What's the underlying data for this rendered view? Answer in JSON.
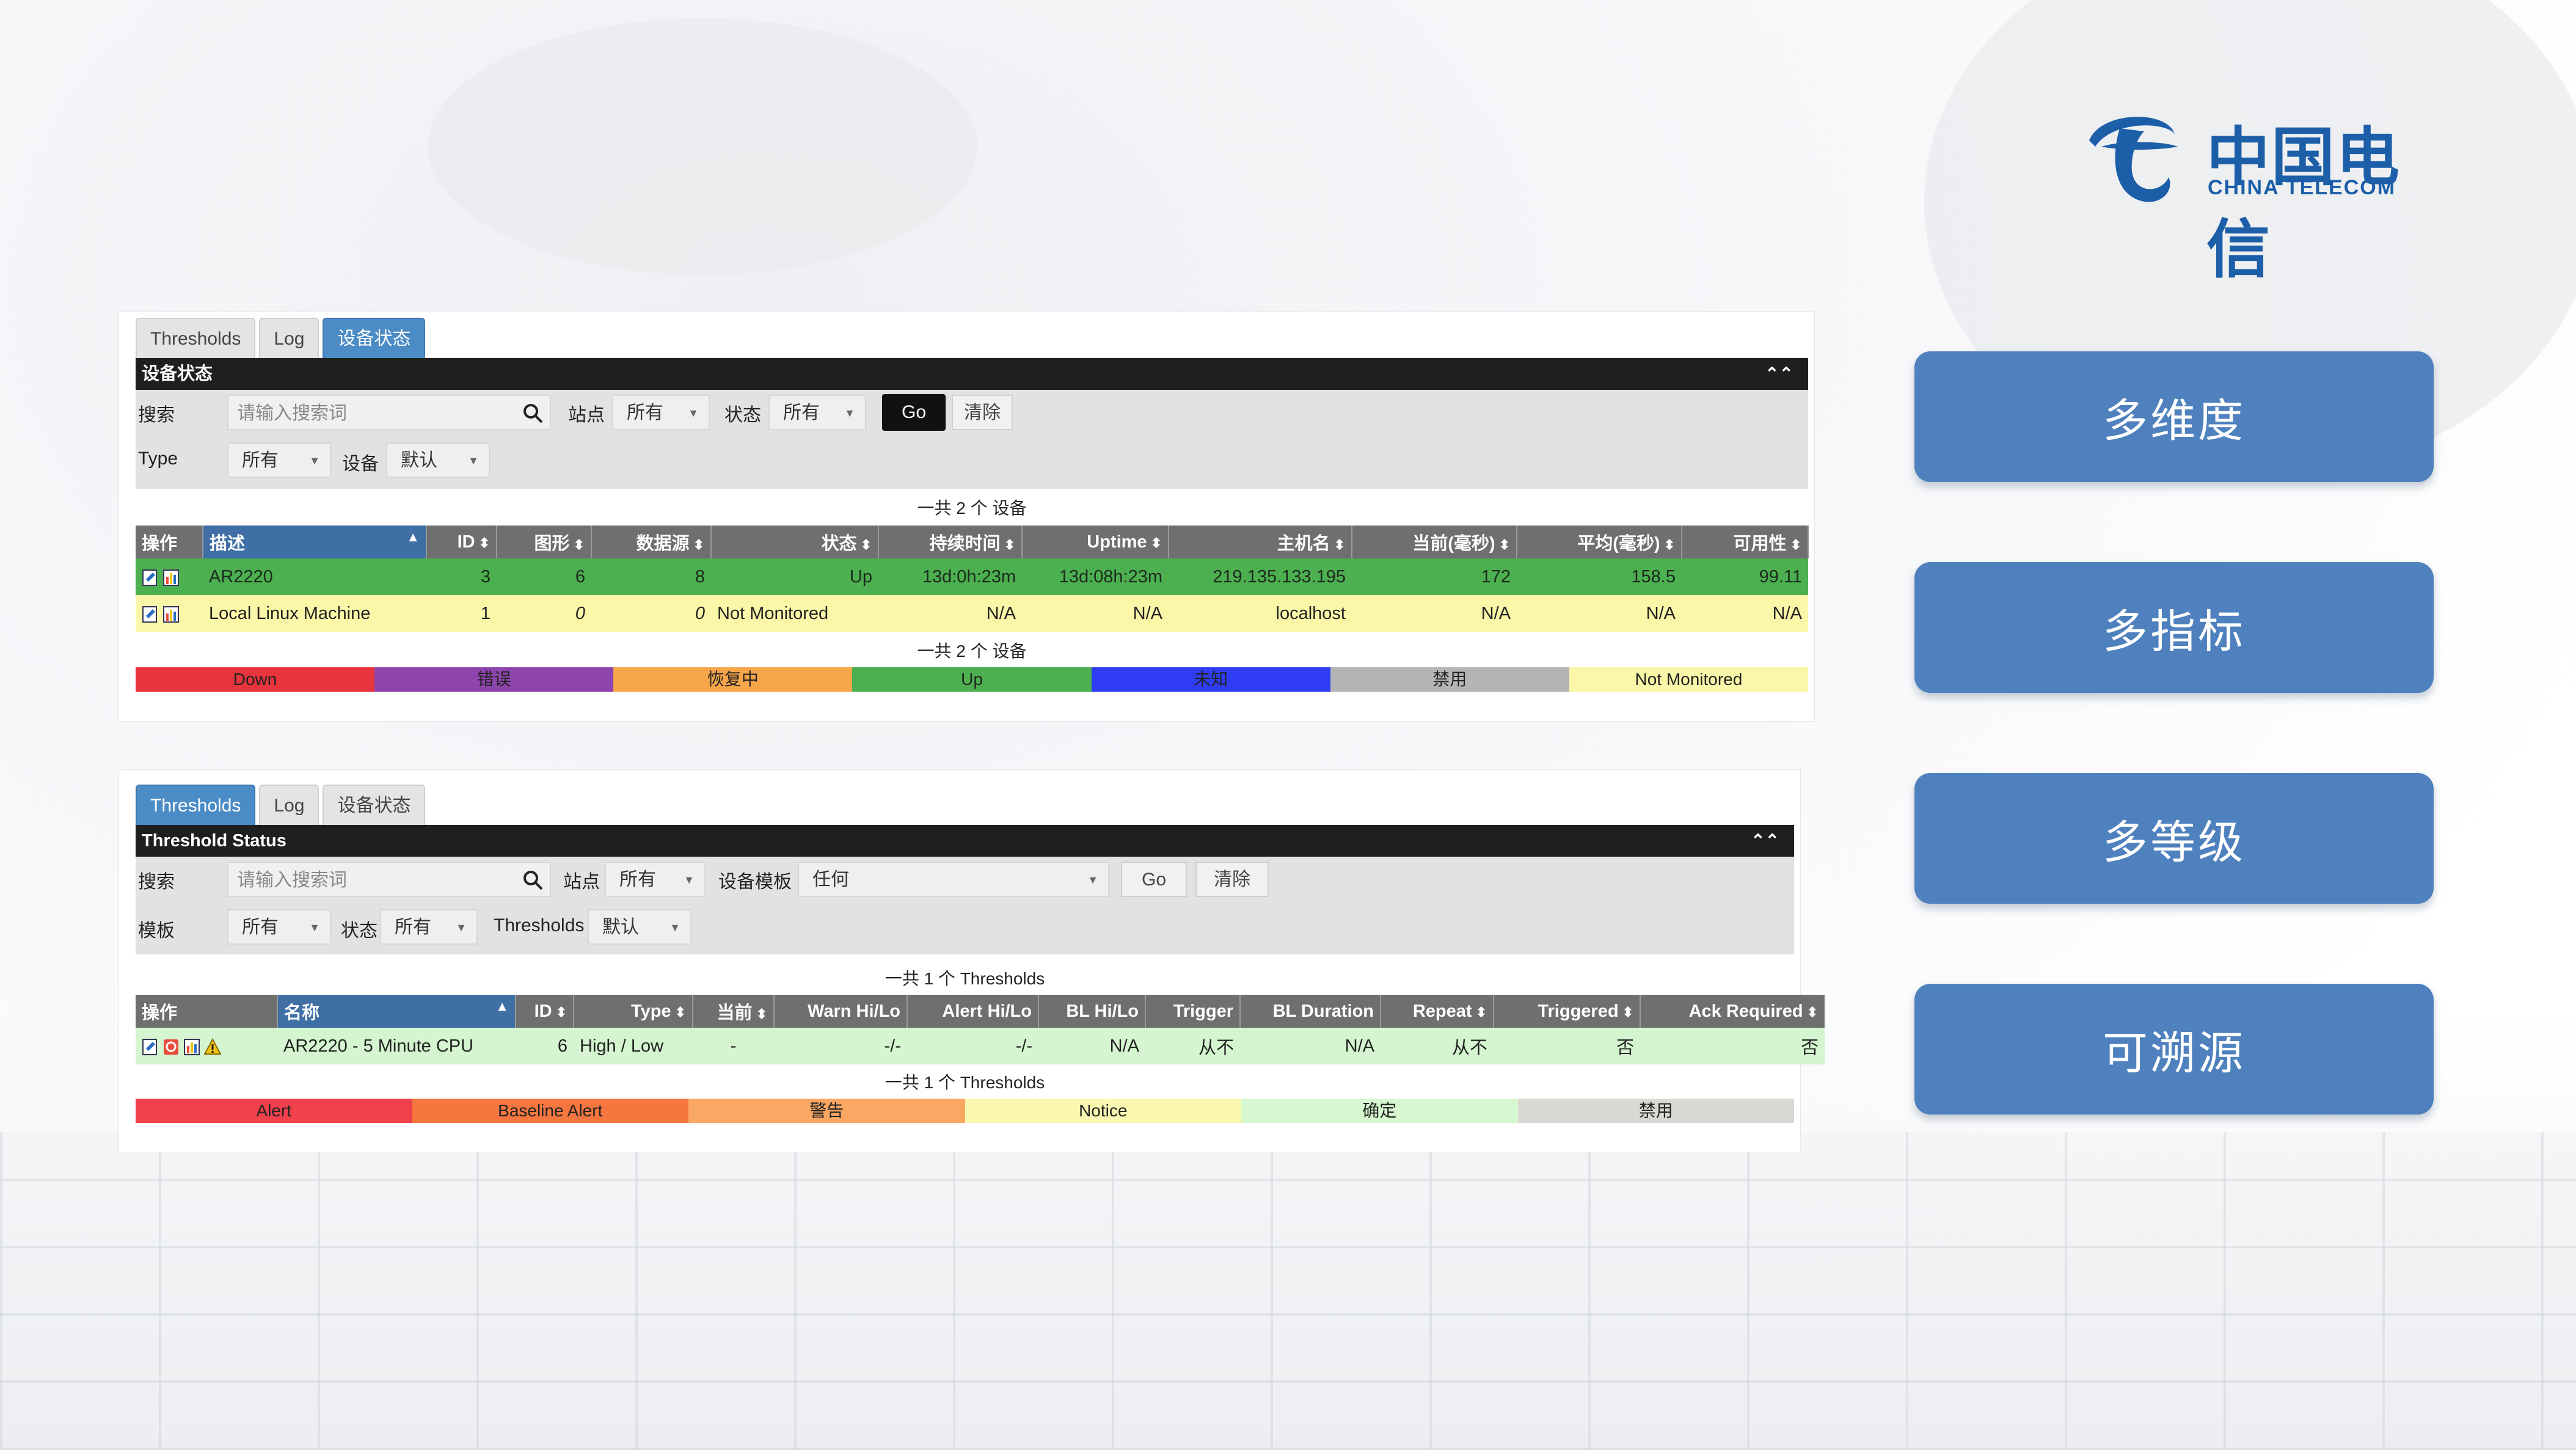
{
  "logo": {
    "cn": "中国电信",
    "en": "CHINA TELECOM",
    "color": "#1c5fa8"
  },
  "features": [
    "多维度",
    "多指标",
    "多等级",
    "可溯源"
  ],
  "device_panel": {
    "tabs": [
      "Thresholds",
      "Log",
      "设备状态"
    ],
    "active_tab": 2,
    "bar_title": "设备状态",
    "filters": {
      "search_label": "搜索",
      "search_placeholder": "请输入搜索词",
      "site_label": "站点",
      "site_value": "所有",
      "status_label": "状态",
      "status_value": "所有",
      "go": "Go",
      "clear": "清除",
      "type_label": "Type",
      "type_value": "所有",
      "device_label": "设备",
      "device_value": "默认"
    },
    "total_note": "一共 2 个 设备",
    "columns": [
      "操作",
      "描述",
      "ID",
      "图形",
      "数据源",
      "状态",
      "持续时间",
      "Uptime",
      "主机名",
      "当前(毫秒)",
      "平均(毫秒)",
      "可用性"
    ],
    "rows": [
      [
        "",
        "AR2220",
        "3",
        "6",
        "8",
        "Up",
        "13d:0h:23m",
        "13d:08h:23m",
        "219.135.133.195",
        "172",
        "158.5",
        "99.11"
      ],
      [
        "",
        "Local Linux Machine",
        "1",
        "0",
        "0",
        "Not Monitored",
        "N/A",
        "N/A",
        "localhost",
        "N/A",
        "N/A",
        "N/A"
      ]
    ],
    "legend": [
      {
        "label": "Down",
        "color": "#e8343c"
      },
      {
        "label": "错误",
        "color": "#8e44ad"
      },
      {
        "label": "恢复中",
        "color": "#f7a64a"
      },
      {
        "label": "Up",
        "color": "#4caf50"
      },
      {
        "label": "未知",
        "color": "#2f3ef5"
      },
      {
        "label": "禁用",
        "color": "#b5b5b5"
      },
      {
        "label": "Not Monitored",
        "color": "#fbf7a8"
      }
    ]
  },
  "threshold_panel": {
    "tabs": [
      "Thresholds",
      "Log",
      "设备状态"
    ],
    "active_tab": 0,
    "bar_title": "Threshold Status",
    "filters": {
      "search_label": "搜索",
      "search_placeholder": "请输入搜索词",
      "site_label": "站点",
      "site_value": "所有",
      "template_label": "设备模板",
      "template_value": "任何",
      "go": "Go",
      "clear": "清除",
      "tmpl_label": "模板",
      "tmpl_value": "所有",
      "status_label": "状态",
      "status_value": "所有",
      "thresholds_label": "Thresholds",
      "thresholds_value": "默认"
    },
    "total_note": "一共 1 个 Thresholds",
    "columns": [
      "操作",
      "名称",
      "ID",
      "Type",
      "当前",
      "Warn Hi/Lo",
      "Alert Hi/Lo",
      "BL Hi/Lo",
      "Trigger",
      "BL Duration",
      "Repeat",
      "Triggered",
      "Ack Required"
    ],
    "rows": [
      [
        "",
        "AR2220 - 5 Minute CPU",
        "6",
        "High / Low",
        "-",
        "-/-",
        "-/-",
        "N/A",
        "从不",
        "N/A",
        "从不",
        "否",
        "否"
      ]
    ],
    "legend": [
      {
        "label": "Alert",
        "color": "#f0414c"
      },
      {
        "label": "Baseline Alert",
        "color": "#f5763f"
      },
      {
        "label": "警告",
        "color": "#fba764"
      },
      {
        "label": "Notice",
        "color": "#fbf7b0"
      },
      {
        "label": "确定",
        "color": "#d6f7cf"
      },
      {
        "label": "禁用",
        "color": "#d9d9d4"
      }
    ]
  }
}
